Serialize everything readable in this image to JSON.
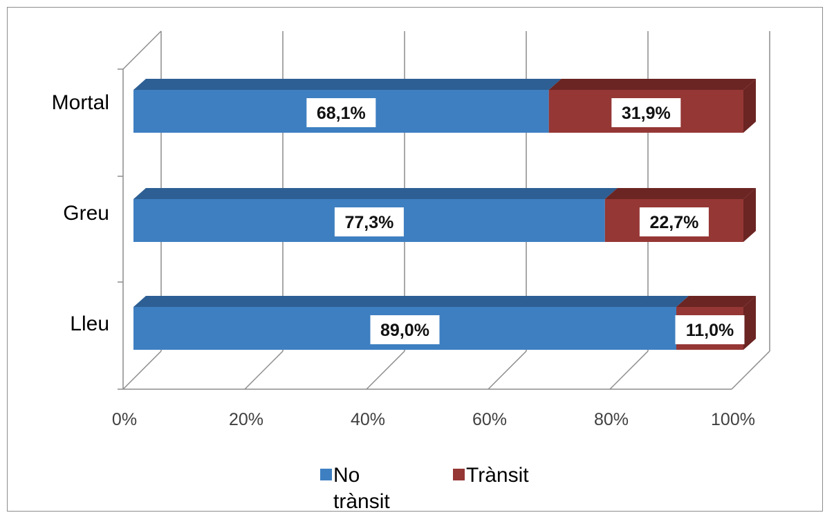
{
  "chart_data": {
    "type": "bar",
    "orientation": "horizontal",
    "stacked": "100%",
    "three_d": true,
    "categories": [
      "Mortal",
      "Greu",
      "Lleu"
    ],
    "series": [
      {
        "name": "No trànsit",
        "values": [
          68.1,
          77.3,
          89.0
        ],
        "labels": [
          "68,1%",
          "77,3%",
          "89,0%"
        ],
        "color": "#3E7FC1",
        "side_color": "#2D5F94"
      },
      {
        "name": "Trànsit",
        "values": [
          31.9,
          22.7,
          11.0
        ],
        "labels": [
          "31,9%",
          "22,7%",
          "11,0%"
        ],
        "color": "#953735",
        "side_color": "#6B2523"
      }
    ],
    "xlim": [
      0,
      100
    ],
    "x_ticks": [
      "0%",
      "20%",
      "40%",
      "60%",
      "80%",
      "100%"
    ],
    "grid": true,
    "legend": {
      "position": "bottom",
      "entries": [
        "No trànsit",
        "Trànsit"
      ],
      "lines": [
        [
          "No",
          "trànsit"
        ],
        [
          "Trànsit"
        ]
      ]
    },
    "title": "",
    "xlabel": "",
    "ylabel": ""
  }
}
